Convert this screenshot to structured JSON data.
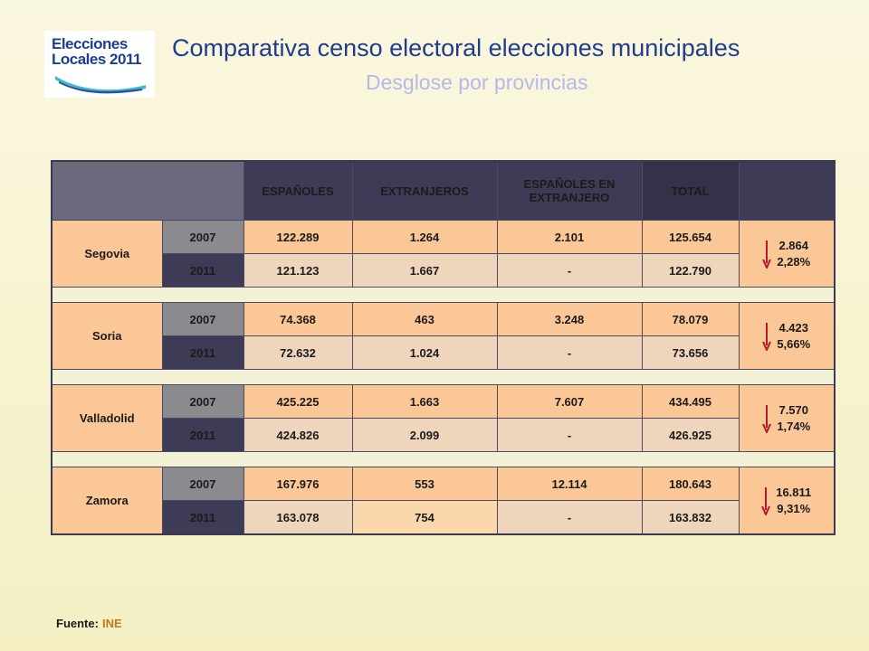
{
  "logo": {
    "line1": "Elecciones",
    "line2": "Locales 2011"
  },
  "title": "Comparativa censo electoral elecciones municipales",
  "subtitle": "Desglose por provincias",
  "table": {
    "headers": [
      "ESPAÑOLES",
      "EXTRANJEROS",
      "ESPAÑOLES EN EXTRANJERO",
      "TOTAL"
    ],
    "provinces": [
      {
        "name": "Segovia",
        "rows": [
          {
            "year": "2007",
            "espanoles": "122.289",
            "extranjeros": "1.264",
            "esp_extranjero": "2.101",
            "total": "125.654"
          },
          {
            "year": "2011",
            "espanoles": "121.123",
            "extranjeros": "1.667",
            "esp_extranjero": "-",
            "total": "122.790"
          }
        ],
        "diff_value": "2.864",
        "diff_pct": "2,28%"
      },
      {
        "name": "Soria",
        "rows": [
          {
            "year": "2007",
            "espanoles": "74.368",
            "extranjeros": "463",
            "esp_extranjero": "3.248",
            "total": "78.079"
          },
          {
            "year": "2011",
            "espanoles": "72.632",
            "extranjeros": "1.024",
            "esp_extranjero": "-",
            "total": "73.656"
          }
        ],
        "diff_value": "4.423",
        "diff_pct": "5,66%"
      },
      {
        "name": "Valladolid",
        "rows": [
          {
            "year": "2007",
            "espanoles": "425.225",
            "extranjeros": "1.663",
            "esp_extranjero": "7.607",
            "total": "434.495"
          },
          {
            "year": "2011",
            "espanoles": "424.826",
            "extranjeros": "2.099",
            "esp_extranjero": "-",
            "total": "426.925"
          }
        ],
        "diff_value": "7.570",
        "diff_pct": "1,74%"
      },
      {
        "name": "Zamora",
        "rows": [
          {
            "year": "2007",
            "espanoles": "167.976",
            "extranjeros": "553",
            "esp_extranjero": "12.114",
            "total": "180.643"
          },
          {
            "year": "2011",
            "espanoles": "163.078",
            "extranjeros": "754",
            "esp_extranjero": "-",
            "total": "163.832"
          }
        ],
        "diff_value": "16.811",
        "diff_pct": "9,31%"
      }
    ]
  },
  "footer": {
    "label": "Fuente:",
    "source": "INE"
  },
  "colors": {
    "arrow": "#b5172b",
    "title": "#1f3d8c",
    "subtitle": "#b5b8ea",
    "cell": "#fbc797"
  },
  "icons": {
    "diff": "down-arrow-icon",
    "logo": "elecciones-logo"
  }
}
